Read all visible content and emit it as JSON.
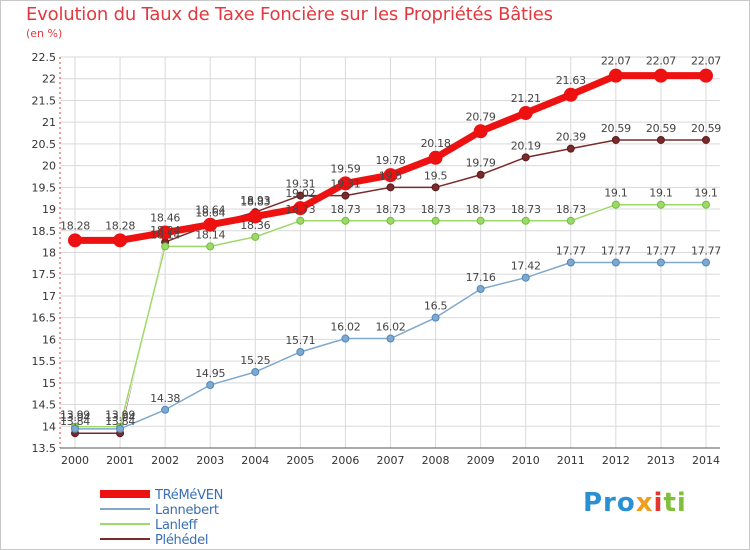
{
  "header": {
    "title": "Evolution du Taux de Taxe Foncière sur les Propriétés Bâties",
    "unit": "(en %)"
  },
  "logo": {
    "text": [
      "Pro",
      "x",
      "i",
      "ti"
    ]
  },
  "colors": {
    "title": "#e3383e",
    "grid": "#d9d9d9",
    "axis": "#555555",
    "tick_label": "#333333",
    "value_label": "#444444"
  },
  "chart_data": {
    "type": "line",
    "x": [
      "2000",
      "2001",
      "2002",
      "2003",
      "2004",
      "2005",
      "2006",
      "2007",
      "2008",
      "2009",
      "2010",
      "2011",
      "2012",
      "2013",
      "2014"
    ],
    "ylim": [
      13.5,
      22.5
    ],
    "yticks": [
      "13.5",
      "14",
      "14.5",
      "15",
      "15.5",
      "16",
      "16.5",
      "17",
      "17.5",
      "18",
      "18.5",
      "19",
      "19.5",
      "20",
      "20.5",
      "21",
      "21.5",
      "22",
      "22.5"
    ],
    "grid": true,
    "legend_position": "bottom-left",
    "series": [
      {
        "name": "TRéMéVEN",
        "color": "#ee1111",
        "values": [
          18.28,
          18.28,
          18.46,
          18.64,
          18.83,
          19.02,
          19.59,
          19.78,
          20.18,
          20.79,
          21.21,
          21.63,
          22.07,
          22.07,
          22.07
        ],
        "labels": [
          "18.28",
          "18.28",
          "18.46",
          "18.64",
          "18.83",
          "19.02",
          "19.59",
          "19.78",
          "20.18",
          "20.79",
          "21.21",
          "21.63",
          "22.07",
          "22.07",
          "22.07"
        ]
      },
      {
        "name": "Lannebert",
        "color": "#7fa8cc",
        "values": [
          13.94,
          13.94,
          14.38,
          14.95,
          15.25,
          15.71,
          16.02,
          16.02,
          16.5,
          17.16,
          17.42,
          17.77,
          17.77,
          17.77,
          17.77
        ],
        "labels": [
          "13.94",
          "13.94",
          "14.38",
          "14.95",
          "15.25",
          "15.71",
          "16.02",
          "16.02",
          "16.5",
          "17.16",
          "17.42",
          "17.77",
          "17.77",
          "17.77",
          "17.77"
        ]
      },
      {
        "name": "Lanleff",
        "color": "#9ed86a",
        "values": [
          13.99,
          13.99,
          18.14,
          18.14,
          18.36,
          18.73,
          18.73,
          18.73,
          18.73,
          18.73,
          18.73,
          18.73,
          19.1,
          19.1,
          19.1
        ],
        "labels": [
          "13.99",
          "13.99",
          "18.14",
          "18.14",
          "18.36",
          "18.73",
          "18.73",
          "18.73",
          "18.73",
          "18.73",
          "18.73",
          "18.73",
          "19.1",
          "19.1",
          "19.1"
        ]
      },
      {
        "name": "Pléhédel",
        "color": "#7a2a2a",
        "values": [
          13.84,
          13.84,
          18.24,
          18.64,
          18.93,
          19.31,
          19.31,
          19.5,
          19.5,
          19.79,
          20.19,
          20.39,
          20.59,
          20.59,
          20.59
        ],
        "labels": [
          "13.84",
          "13.84",
          "18.24",
          "18.64",
          "18.93",
          "19.31",
          "19.31",
          "19.5",
          "19.5",
          "19.79",
          "20.19",
          "20.39",
          "20.59",
          "20.59",
          "20.59"
        ]
      }
    ]
  }
}
